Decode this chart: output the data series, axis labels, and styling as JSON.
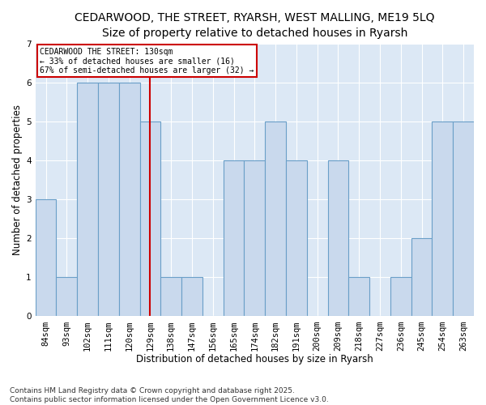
{
  "title_line1": "CEDARWOOD, THE STREET, RYARSH, WEST MALLING, ME19 5LQ",
  "title_line2": "Size of property relative to detached houses in Ryarsh",
  "xlabel": "Distribution of detached houses by size in Ryarsh",
  "ylabel": "Number of detached properties",
  "categories": [
    "84sqm",
    "93sqm",
    "102sqm",
    "111sqm",
    "120sqm",
    "129sqm",
    "138sqm",
    "147sqm",
    "156sqm",
    "165sqm",
    "174sqm",
    "182sqm",
    "191sqm",
    "200sqm",
    "209sqm",
    "218sqm",
    "227sqm",
    "236sqm",
    "245sqm",
    "254sqm",
    "263sqm"
  ],
  "values": [
    3,
    1,
    6,
    6,
    6,
    5,
    1,
    1,
    0,
    4,
    4,
    5,
    4,
    0,
    4,
    1,
    0,
    1,
    2,
    5,
    5
  ],
  "bar_color": "#c9d9ed",
  "bar_edge_color": "#6a9fc8",
  "highlight_index": 5,
  "highlight_line_color": "#cc0000",
  "annotation_text": "CEDARWOOD THE STREET: 130sqm\n← 33% of detached houses are smaller (16)\n67% of semi-detached houses are larger (32) →",
  "annotation_box_color": "#ffffff",
  "annotation_box_edge": "#cc0000",
  "ylim": [
    0,
    7
  ],
  "yticks": [
    0,
    1,
    2,
    3,
    4,
    5,
    6,
    7
  ],
  "footnote": "Contains HM Land Registry data © Crown copyright and database right 2025.\nContains public sector information licensed under the Open Government Licence v3.0.",
  "bg_color": "#ffffff",
  "plot_bg_color": "#dce8f5",
  "grid_color": "#ffffff",
  "title_fontsize": 10,
  "subtitle_fontsize": 9,
  "tick_fontsize": 7.5,
  "label_fontsize": 8.5,
  "footnote_fontsize": 6.5,
  "annotation_fontsize": 7
}
